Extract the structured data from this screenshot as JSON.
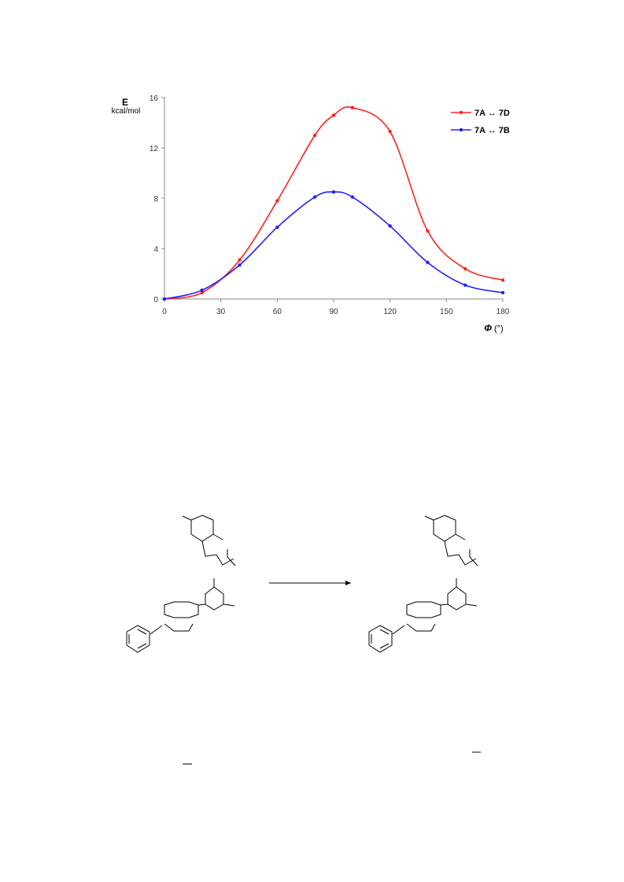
{
  "chart_data": {
    "type": "line",
    "ylabel": "E",
    "ylabel_unit": "kcal/mol",
    "xlabel_symbol": "Φ",
    "xlabel_unit": "(°)",
    "xlim": [
      0,
      180
    ],
    "ylim": [
      0,
      16
    ],
    "xticks": [
      0,
      30,
      60,
      90,
      120,
      150,
      180
    ],
    "yticks": [
      0,
      4,
      8,
      12,
      16
    ],
    "grid": false,
    "legend_position": "top-right",
    "series": [
      {
        "name": "7A ↔ 7D",
        "color": "#ff2020",
        "x": [
          0,
          20,
          40,
          60,
          80,
          90,
          100,
          120,
          140,
          160,
          180
        ],
        "y": [
          0,
          0.5,
          3.1,
          7.8,
          13.0,
          14.6,
          15.2,
          13.3,
          5.4,
          2.4,
          1.5
        ]
      },
      {
        "name": "7A ↔ 7B",
        "color": "#2020ff",
        "x": [
          0,
          20,
          40,
          60,
          80,
          90,
          100,
          120,
          140,
          160,
          180
        ],
        "y": [
          0,
          0.7,
          2.7,
          5.7,
          8.1,
          8.5,
          8.1,
          5.8,
          2.9,
          1.1,
          0.5
        ]
      }
    ]
  },
  "scheme": {
    "arrow": "reaction-arrow",
    "structures": [
      "reactant-molecule",
      "product-molecule"
    ]
  }
}
